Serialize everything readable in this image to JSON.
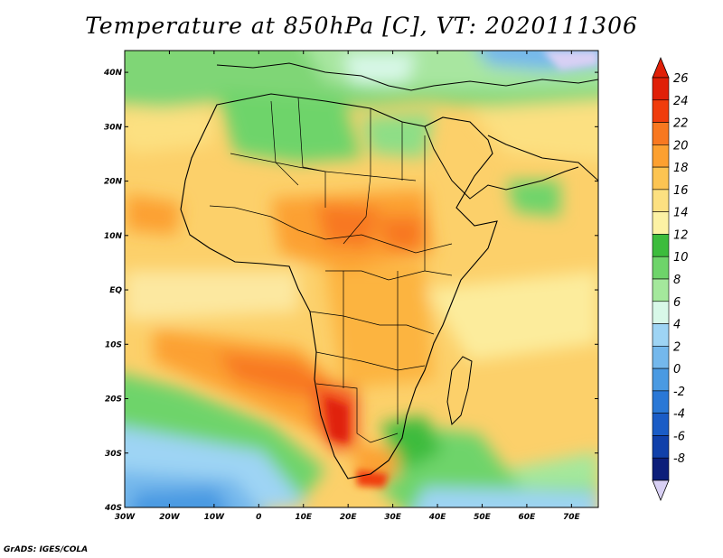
{
  "title": "Temperature at 850hPa [C], VT: 2020111306",
  "credit": "GrADS: IGES/COLA",
  "map": {
    "variable": "Temperature at 850hPa",
    "units": "C",
    "valid_time": "2020111306",
    "lon_range": [
      -30,
      76
    ],
    "lat_range": [
      -40,
      44
    ],
    "lon_ticks": [
      "30W",
      "20W",
      "10W",
      "0",
      "10E",
      "20E",
      "30E",
      "40E",
      "50E",
      "60E",
      "70E"
    ],
    "lat_ticks": [
      "40N",
      "30N",
      "20N",
      "10N",
      "EQ",
      "10S",
      "20S",
      "30S",
      "40S"
    ],
    "coastlines": true,
    "country_borders": true
  },
  "colorbar": {
    "labels": [
      "26",
      "24",
      "22",
      "20",
      "18",
      "16",
      "14",
      "12",
      "10",
      "8",
      "6",
      "4",
      "2",
      "0",
      "-2",
      "-4",
      "-6",
      "-8"
    ],
    "colors": [
      "#e02008",
      "#f03c0c",
      "#f87820",
      "#fca030",
      "#fcc452",
      "#fce081",
      "#fcf2a4",
      "#3cbc3c",
      "#6ed46a",
      "#a4e89c",
      "#d8f8e8",
      "#9ed4f4",
      "#74b8ec",
      "#4a9ae2",
      "#2a78d6",
      "#1a5cc6",
      "#1040aa",
      "#0c1e7a"
    ],
    "over_color": "#e02008",
    "under_color": "#d8d0f4"
  }
}
